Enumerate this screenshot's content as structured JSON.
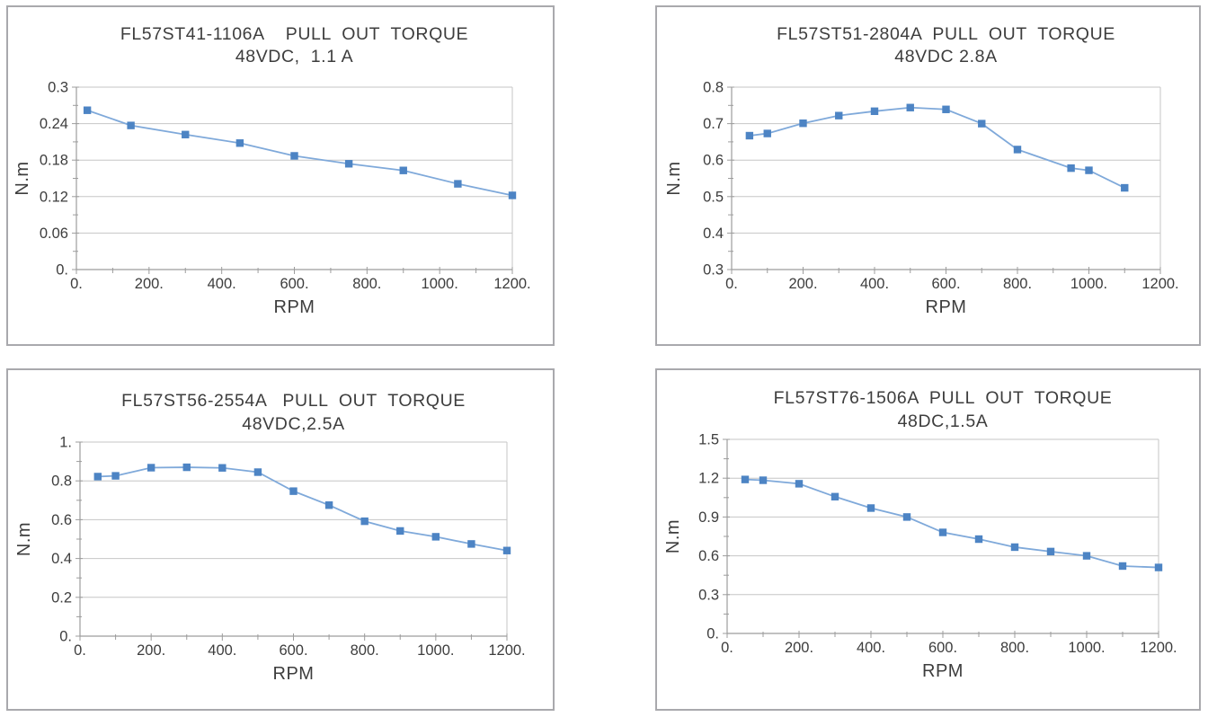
{
  "style": {
    "panel_border": "#a9a9ad",
    "grid": "#c6c6c6",
    "axis": "#9c9c9c",
    "text": "#3d3d3d",
    "line": "#7fa9da",
    "marker": "#4d84c4"
  },
  "chart_data": [
    {
      "type": "line",
      "title_line1": "FL57ST41-1106A    PULL  OUT  TORQUE",
      "title_line2": "48VDC,  1.1 A",
      "xlabel": "RPM",
      "ylabel": "N.m",
      "legend": "none",
      "grid": "horizontal-major",
      "xlim": [
        0,
        1200
      ],
      "ylim": [
        0,
        0.3
      ],
      "xticks": [
        0,
        200,
        400,
        600,
        800,
        1000,
        1200
      ],
      "xtick_labels": [
        "0.",
        "200.",
        "400.",
        "600.",
        "800.",
        "1000.",
        "1200."
      ],
      "yticks": [
        0,
        0.06,
        0.12,
        0.18,
        0.24,
        0.3
      ],
      "ytick_labels": [
        "0.",
        "0.06",
        "0.12",
        "0.18",
        "0.24",
        "0.3"
      ],
      "x": [
        30,
        150,
        300,
        450,
        600,
        750,
        900,
        1050,
        1200
      ],
      "y": [
        0.262,
        0.237,
        0.222,
        0.208,
        0.187,
        0.174,
        0.163,
        0.141,
        0.122
      ]
    },
    {
      "type": "line",
      "title_line1": "FL57ST51-2804A  PULL  OUT  TORQUE",
      "title_line2": "48VDC 2.8A",
      "xlabel": "RPM",
      "ylabel": "N.m",
      "legend": "none",
      "grid": "horizontal-major",
      "xlim": [
        0,
        1200
      ],
      "ylim": [
        0.3,
        0.8
      ],
      "xticks": [
        0,
        200,
        400,
        600,
        800,
        1000,
        1200
      ],
      "xtick_labels": [
        "0.",
        "200.",
        "400.",
        "600.",
        "800.",
        "1000.",
        "1200."
      ],
      "yticks": [
        0.3,
        0.4,
        0.5,
        0.6,
        0.7,
        0.8
      ],
      "ytick_labels": [
        "0.3",
        "0.4",
        "0.5",
        "0.6",
        "0.7",
        "0.8"
      ],
      "x": [
        50,
        100,
        200,
        300,
        400,
        500,
        600,
        700,
        800,
        950,
        1000,
        1100
      ],
      "y": [
        0.667,
        0.673,
        0.701,
        0.722,
        0.734,
        0.744,
        0.739,
        0.7,
        0.629,
        0.578,
        0.572,
        0.524
      ]
    },
    {
      "type": "line",
      "title_line1": "FL57ST56-2554A   PULL  OUT  TORQUE",
      "title_line2": "48VDC,2.5A",
      "xlabel": "RPM",
      "ylabel": "N.m",
      "legend": "none",
      "grid": "horizontal-major",
      "xlim": [
        0,
        1200
      ],
      "ylim": [
        0,
        1
      ],
      "xticks": [
        0,
        200,
        400,
        600,
        800,
        1000,
        1200
      ],
      "xtick_labels": [
        "0.",
        "200.",
        "400.",
        "600.",
        "800.",
        "1000.",
        "1200."
      ],
      "yticks": [
        0,
        0.2,
        0.4,
        0.6,
        0.8,
        1
      ],
      "ytick_labels": [
        "0.",
        "0.2",
        "0.4",
        "0.6",
        "0.8",
        "1."
      ],
      "x": [
        50,
        100,
        200,
        300,
        400,
        500,
        600,
        700,
        800,
        900,
        1000,
        1100,
        1200
      ],
      "y": [
        0.822,
        0.826,
        0.868,
        0.87,
        0.867,
        0.845,
        0.747,
        0.675,
        0.592,
        0.542,
        0.512,
        0.475,
        0.441
      ]
    },
    {
      "type": "line",
      "title_line1": "FL57ST76-1506A  PULL  OUT  TORQUE",
      "title_line2": "48DC,1.5A",
      "xlabel": "RPM",
      "ylabel": "N.m",
      "legend": "none",
      "grid": "horizontal-major",
      "xlim": [
        0,
        1200
      ],
      "ylim": [
        0,
        1.5
      ],
      "xticks": [
        0,
        200,
        400,
        600,
        800,
        1000,
        1200
      ],
      "xtick_labels": [
        "0.",
        "200.",
        "400.",
        "600.",
        "800.",
        "1000.",
        "1200."
      ],
      "yticks": [
        0,
        0.3,
        0.6,
        0.9,
        1.2,
        1.5
      ],
      "ytick_labels": [
        "0.",
        "0.3",
        "0.6",
        "0.9",
        "1.2",
        "1.5"
      ],
      "x": [
        50,
        100,
        200,
        300,
        400,
        500,
        600,
        700,
        800,
        900,
        1000,
        1100,
        1200
      ],
      "y": [
        1.19,
        1.184,
        1.157,
        1.057,
        0.969,
        0.9,
        0.781,
        0.729,
        0.667,
        0.633,
        0.6,
        0.521,
        0.51
      ]
    }
  ]
}
